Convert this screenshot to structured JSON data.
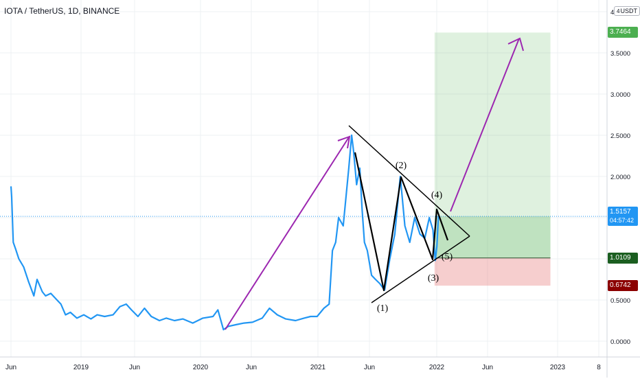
{
  "header": {
    "symbol_title": "IOTA / TetherUS, 1D, BINANCE",
    "quote_currency_prefix": "4",
    "quote_currency": "USDT"
  },
  "chart_data": {
    "type": "line",
    "series": [
      {
        "x": [
          "2018-06-01",
          "2018-06-03",
          "2018-06-08",
          "2018-06-15",
          "2018-06-25",
          "2018-07-10",
          "2018-07-25",
          "2018-08-10",
          "2018-08-20",
          "2018-09-05",
          "2018-09-15",
          "2018-10-01",
          "2018-10-20",
          "2018-11-01",
          "2018-11-15",
          "2018-11-30",
          "2018-12-20",
          "2019-01-10",
          "2019-02-01",
          "2019-02-20",
          "2019-03-15",
          "2019-04-10",
          "2019-05-01",
          "2019-05-20",
          "2019-06-05",
          "2019-06-25",
          "2019-07-15",
          "2019-08-05",
          "2019-08-30",
          "2019-09-20",
          "2019-10-15",
          "2019-11-10",
          "2019-12-10",
          "2020-01-10",
          "2020-02-10",
          "2020-02-25",
          "2020-03-13",
          "2020-03-28",
          "2020-04-20",
          "2020-05-15",
          "2020-06-10",
          "2020-07-10",
          "2020-08-01",
          "2020-08-25",
          "2020-09-20",
          "2020-10-20",
          "2020-11-15",
          "2020-12-05",
          "2020-12-25",
          "2021-01-15",
          "2021-01-31",
          "2021-02-10",
          "2021-02-20",
          "2021-03-01",
          "2021-03-15",
          "2021-04-01",
          "2021-04-10",
          "2021-04-16",
          "2021-04-25",
          "2021-05-05",
          "2021-05-12",
          "2021-05-19",
          "2021-05-28",
          "2021-06-10",
          "2021-06-22",
          "2021-07-05",
          "2021-07-20",
          "2021-08-05",
          "2021-08-20",
          "2021-09-06",
          "2021-09-20",
          "2021-10-05",
          "2021-10-20",
          "2021-11-05",
          "2021-11-20",
          "2021-12-04",
          "2021-12-15",
          "2021-12-22",
          "2021-12-27",
          "2022-01-01"
        ],
        "y": [
          1.88,
          1.75,
          1.2,
          1.12,
          1.0,
          0.9,
          0.72,
          0.55,
          0.75,
          0.6,
          0.55,
          0.58,
          0.5,
          0.45,
          0.32,
          0.35,
          0.28,
          0.32,
          0.27,
          0.32,
          0.3,
          0.32,
          0.42,
          0.45,
          0.38,
          0.3,
          0.4,
          0.3,
          0.25,
          0.28,
          0.25,
          0.27,
          0.22,
          0.28,
          0.3,
          0.38,
          0.14,
          0.18,
          0.2,
          0.22,
          0.23,
          0.28,
          0.4,
          0.32,
          0.27,
          0.25,
          0.28,
          0.3,
          0.3,
          0.4,
          0.45,
          1.1,
          1.2,
          1.5,
          1.4,
          2.1,
          2.5,
          2.3,
          1.9,
          2.1,
          1.6,
          1.2,
          1.1,
          0.8,
          0.75,
          0.7,
          0.62,
          1.0,
          1.3,
          2.0,
          1.4,
          1.2,
          1.5,
          1.3,
          1.25,
          1.5,
          1.35,
          0.98,
          1.15,
          1.52
        ]
      }
    ],
    "ylim": [
      -0.08,
      4.05
    ],
    "y_ticks": [
      "4.0000",
      "3.5000",
      "3.0000",
      "2.5000",
      "2.0000",
      "1.5000",
      "1.0000",
      "0.5000",
      "0.0000"
    ],
    "x_ticks": [
      "Jun",
      "2019",
      "Jun",
      "2020",
      "Jun",
      "2021",
      "Jun",
      "2022",
      "Jun",
      "2023",
      "8"
    ],
    "annotations": [
      {
        "label": "(1)",
        "x": "2021-07-20",
        "y": 0.62
      },
      {
        "label": "(2)",
        "x": "2021-09-06",
        "y": 2.0
      },
      {
        "label": "(3)",
        "x": "2021-12-22",
        "y": 0.98
      },
      {
        "label": "(4)",
        "x": "2022-01-01",
        "y": 1.6
      },
      {
        "label": "(5)",
        "x": "2022-01-01",
        "y": 1.0
      }
    ],
    "position": {
      "entry": 1.0109,
      "target": 3.7464,
      "stop": 0.6742,
      "start": "2021-12-20",
      "end": "2022-12-10"
    },
    "current_price": {
      "value": "1.5157",
      "countdown": "04:57:42"
    },
    "price_labels": {
      "target": "3.7464",
      "entry": "1.0109",
      "stop": "0.6742"
    },
    "colors": {
      "line": "#2196f3",
      "arrow": "#9c27b0",
      "profit_zone": "#4caf50",
      "loss_zone": "#e57373",
      "target_tag": "#4caf50",
      "entry_tag": "#1b5e20",
      "stop_tag": "#8b0000",
      "current_tag": "#2196f3"
    }
  }
}
